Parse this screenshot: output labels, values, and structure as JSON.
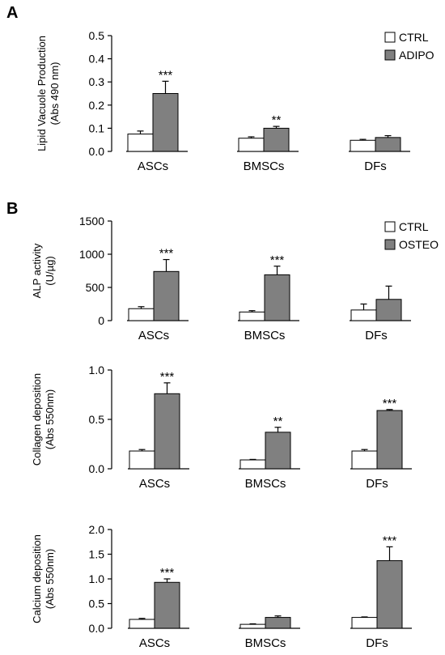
{
  "panels": [
    {
      "label": "A"
    },
    {
      "label": "B"
    }
  ],
  "colors": {
    "ctrl": "#ffffff",
    "treated": "#808080",
    "axis": "#000000"
  },
  "chart_data": [
    {
      "type": "bar",
      "panel": "A",
      "ylabel": [
        "Lipid Vacuole Production",
        "(Abs 490 nm)"
      ],
      "categories": [
        "ASCs",
        "BMSCs",
        "DFs"
      ],
      "ylim": [
        0,
        0.5
      ],
      "yticks": [
        "0.0",
        "0.1",
        "0.2",
        "0.3",
        "0.4",
        "0.5"
      ],
      "legend_position": "top-right",
      "series": [
        {
          "name": "CTRL",
          "values": [
            0.075,
            0.057,
            0.048
          ],
          "errors": [
            0.013,
            0.006,
            0.004
          ]
        },
        {
          "name": "ADIPO",
          "values": [
            0.25,
            0.1,
            0.06
          ],
          "errors": [
            0.053,
            0.008,
            0.008
          ]
        }
      ],
      "annotations": [
        "***",
        "**",
        ""
      ]
    },
    {
      "type": "bar",
      "panel": "B",
      "ylabel": [
        "ALP activity",
        "(U/µg)"
      ],
      "categories": [
        "ASCs",
        "BMSCs",
        "DFs"
      ],
      "ylim": [
        0,
        1500
      ],
      "yticks": [
        "0",
        "500",
        "1000",
        "1500"
      ],
      "legend_position": "top-right",
      "series": [
        {
          "name": "CTRL",
          "values": [
            180,
            130,
            160
          ],
          "errors": [
            30,
            20,
            90
          ]
        },
        {
          "name": "OSTEO",
          "values": [
            740,
            690,
            320
          ],
          "errors": [
            180,
            130,
            200
          ]
        }
      ],
      "annotations": [
        "***",
        "***",
        ""
      ]
    },
    {
      "type": "bar",
      "ylabel": [
        "Collagen deposition",
        "(Abs 550nm)"
      ],
      "categories": [
        "ASCs",
        "BMSCs",
        "DFs"
      ],
      "ylim": [
        0,
        1.0
      ],
      "yticks": [
        "0.0",
        "0.5",
        "1.0"
      ],
      "series": [
        {
          "values": [
            0.18,
            0.09,
            0.18
          ],
          "errors": [
            0.015,
            0.005,
            0.015
          ]
        },
        {
          "values": [
            0.76,
            0.37,
            0.59
          ],
          "errors": [
            0.11,
            0.05,
            0.01
          ]
        }
      ],
      "annotations": [
        "***",
        "**",
        "***"
      ]
    },
    {
      "type": "bar",
      "ylabel": [
        "Calcium deposition",
        "(Abs 550nm)"
      ],
      "categories": [
        "ASCs",
        "BMSCs",
        "DFs"
      ],
      "ylim": [
        0,
        2.0
      ],
      "yticks": [
        "0.0",
        "0.5",
        "1.0",
        "1.5",
        "2.0"
      ],
      "series": [
        {
          "values": [
            0.18,
            0.08,
            0.22
          ],
          "errors": [
            0.02,
            0.01,
            0.01
          ]
        },
        {
          "values": [
            0.93,
            0.22,
            1.37
          ],
          "errors": [
            0.07,
            0.03,
            0.28
          ]
        }
      ],
      "annotations": [
        "***",
        "",
        "***"
      ]
    }
  ]
}
